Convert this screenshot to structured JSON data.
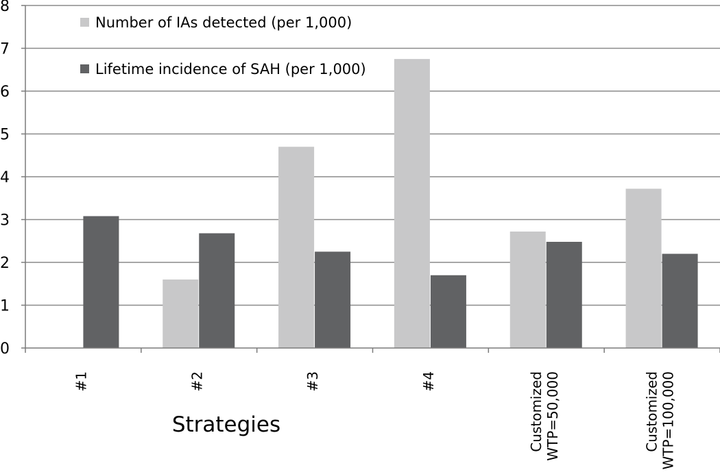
{
  "chart_data": {
    "type": "bar",
    "categories": [
      [
        "#1"
      ],
      [
        "#2"
      ],
      [
        "#3"
      ],
      [
        "#4"
      ],
      [
        "Customized",
        "WTP=50,000"
      ],
      [
        "Customized",
        "WTP=100,000"
      ]
    ],
    "series": [
      {
        "name": "Number of IAs detected (per 1,000)",
        "color": "#c8c8c9",
        "values": [
          0,
          1.6,
          4.7,
          6.75,
          2.72,
          3.72
        ]
      },
      {
        "name": "Lifetime incidence of SAH (per 1,000)",
        "color": "#616264",
        "values": [
          3.08,
          2.68,
          2.25,
          1.7,
          2.48,
          2.2
        ]
      }
    ],
    "xlabel": "Strategies",
    "ylabel": "",
    "ylim": [
      0,
      8
    ],
    "yticks": [
      0,
      1,
      2,
      3,
      4,
      5,
      6,
      7,
      8
    ],
    "grid": true,
    "legend_position": "top-left"
  }
}
